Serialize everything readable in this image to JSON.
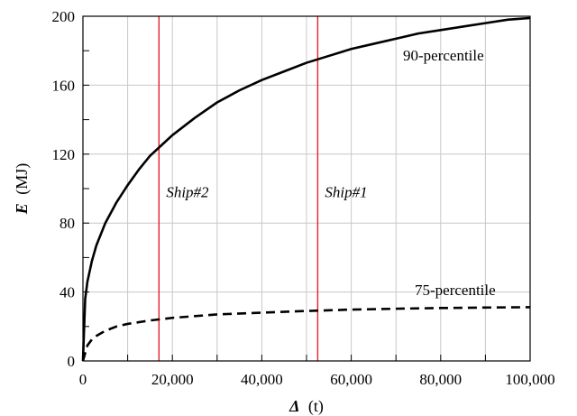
{
  "chart_data": {
    "type": "line",
    "title": "",
    "xlabel": {
      "symbol": "Δ",
      "unit": "(t)"
    },
    "ylabel": {
      "symbol": "E",
      "unit": "(MJ)"
    },
    "xlim": [
      0,
      100000
    ],
    "ylim": [
      0,
      200
    ],
    "x_ticks": [
      0,
      20000,
      40000,
      60000,
      80000,
      100000
    ],
    "x_tick_labels": [
      "0",
      "20,000",
      "40,000",
      "60,000",
      "80,000",
      "100,000"
    ],
    "y_ticks": [
      0,
      40,
      80,
      120,
      160,
      200
    ],
    "y_tick_labels": [
      "0",
      "40",
      "80",
      "120",
      "160",
      "200"
    ],
    "grid": {
      "x": true,
      "y": true
    },
    "series": [
      {
        "name": "90-percentile",
        "style": "solid",
        "color": "#000000",
        "x": [
          0,
          500,
          1000,
          2000,
          3000,
          5000,
          7500,
          10000,
          12500,
          15000,
          17500,
          20000,
          25000,
          30000,
          35000,
          40000,
          45000,
          50000,
          55000,
          60000,
          65000,
          70000,
          75000,
          80000,
          85000,
          90000,
          95000,
          100000
        ],
        "y": [
          0,
          36,
          46,
          58,
          67,
          80,
          92,
          102,
          111,
          119,
          125,
          131,
          141,
          150,
          157,
          163,
          168,
          173,
          177,
          181,
          184,
          187,
          190,
          192,
          194,
          196,
          198,
          199
        ]
      },
      {
        "name": "75-percentile",
        "style": "dashed",
        "color": "#000000",
        "x": [
          0,
          1000,
          2000,
          3000,
          5000,
          7500,
          10000,
          15000,
          20000,
          25000,
          30000,
          40000,
          50000,
          60000,
          70000,
          80000,
          90000,
          100000
        ],
        "y": [
          0,
          9,
          12.5,
          14.5,
          17.5,
          20,
          21.5,
          23.5,
          25,
          26,
          27,
          28,
          29,
          29.8,
          30.3,
          30.7,
          31,
          31.2
        ]
      }
    ],
    "vertical_lines": [
      {
        "label": "Ship#2",
        "x": 17000,
        "color": "#e8202a"
      },
      {
        "label": "Ship#1",
        "x": 52500,
        "color": "#e8202a"
      }
    ]
  }
}
